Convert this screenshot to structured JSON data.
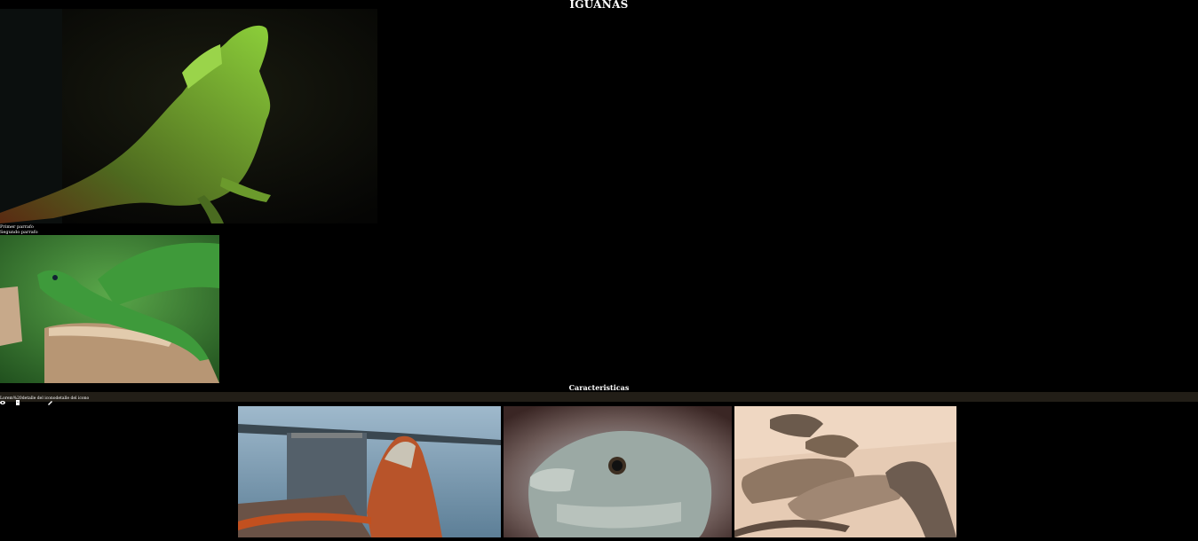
{
  "page": {
    "title": "IGUANAS"
  },
  "intro": {
    "paragraph_1": "Primer parrafo",
    "paragraph_2": "Segundo parrafo"
  },
  "features": {
    "heading": "Caracteristicas",
    "labels": "Lorem%20detalle del iconodetalle del icono",
    "icons": [
      "eye-icon",
      "document-icon",
      "pencil-icon"
    ]
  },
  "gallery": {
    "images": [
      "iguana-by-sea-photo",
      "iguana-head-photo",
      "iguanas-on-beach-photo"
    ]
  },
  "colors": {
    "background": "#000000",
    "features_bar": "#221e17",
    "text": "#ffffff"
  }
}
